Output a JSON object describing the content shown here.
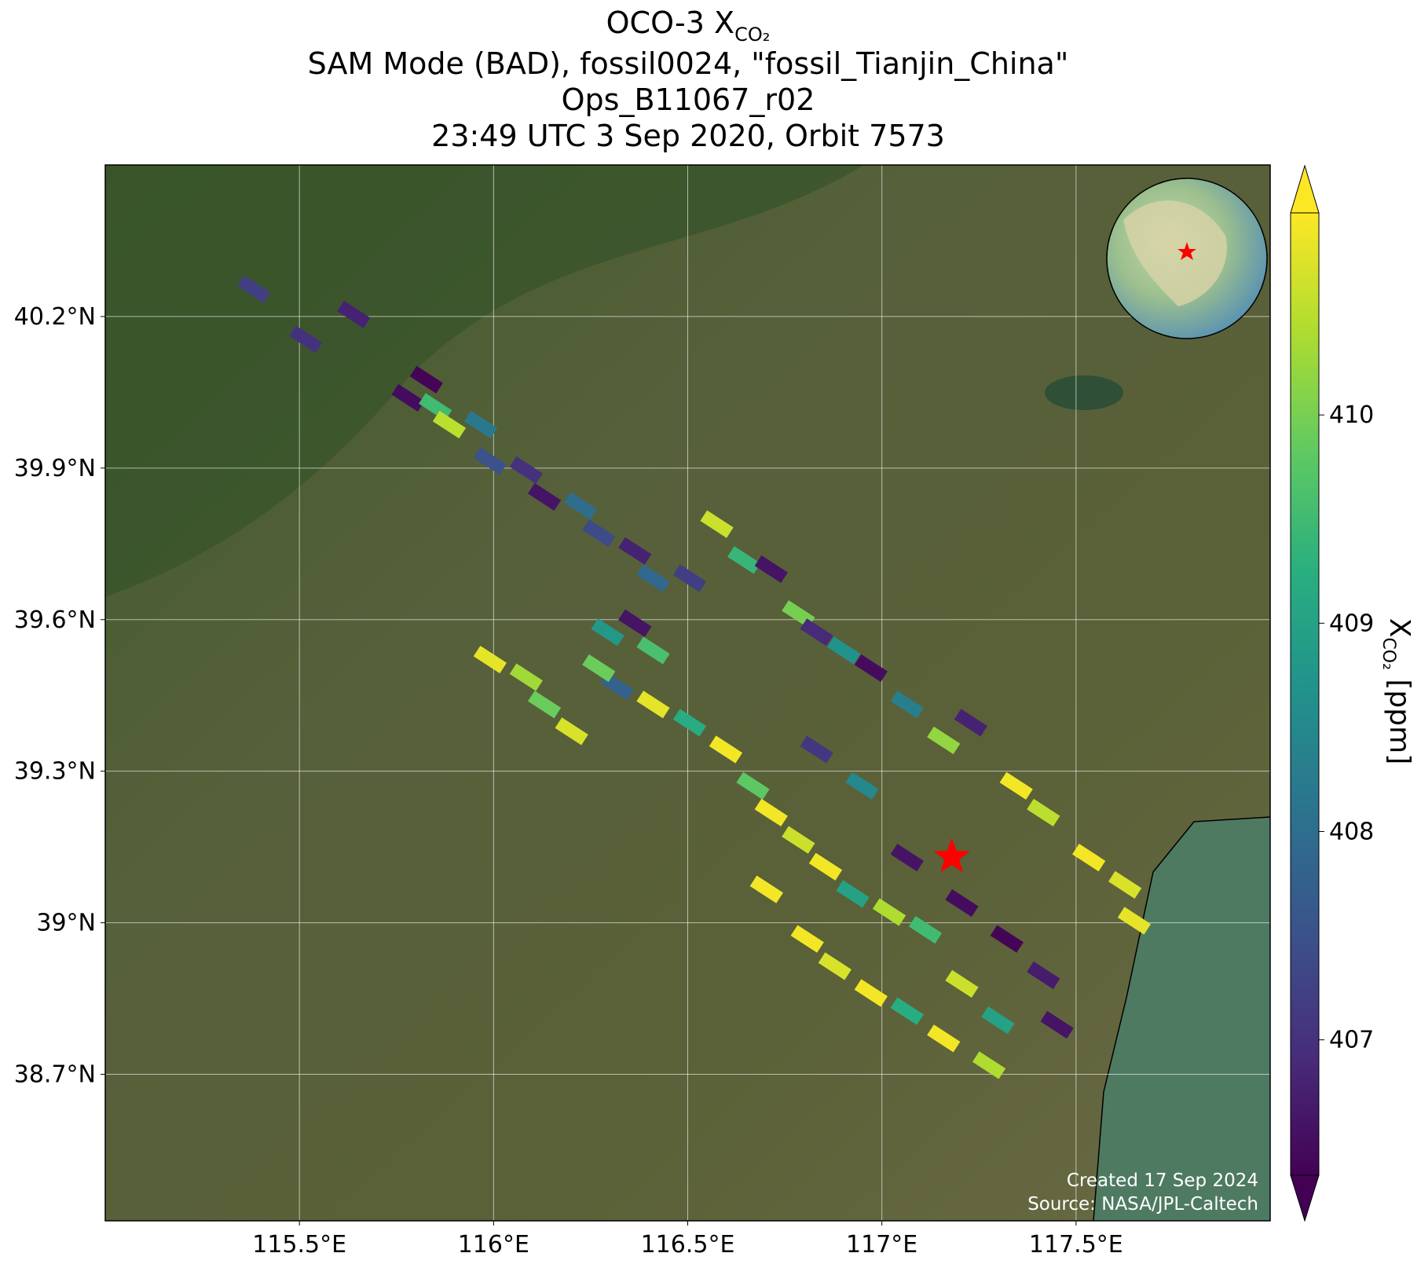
{
  "chart_data": {
    "type": "swath-map",
    "title": {
      "main": "OCO-3 X",
      "sub": "CO₂"
    },
    "subtitle_lines": [
      "SAM Mode (BAD), fossil0024, \"fossil_Tianjin_China\"",
      "Ops_B11067_r02",
      "23:49 UTC 3 Sep 2020, Orbit 7573"
    ],
    "xlim": [
      115.0,
      118.0
    ],
    "ylim": [
      38.41,
      40.5
    ],
    "xticks": [
      {
        "value": 115.5,
        "label": "115.5°E"
      },
      {
        "value": 116,
        "label": "116°E"
      },
      {
        "value": 116.5,
        "label": "116.5°E"
      },
      {
        "value": 117,
        "label": "117°E"
      },
      {
        "value": 117.5,
        "label": "117.5°E"
      }
    ],
    "yticks": [
      {
        "value": 38.7,
        "label": "38.7°N"
      },
      {
        "value": 39,
        "label": "39°N"
      },
      {
        "value": 39.3,
        "label": "39.3°N"
      },
      {
        "value": 39.6,
        "label": "39.6°N"
      },
      {
        "value": 39.9,
        "label": "39.9°N"
      },
      {
        "value": 40.2,
        "label": "40.2°N"
      }
    ],
    "grid": true,
    "colormap": "viridis",
    "clim": [
      406.35,
      410.97
    ],
    "cticks": [
      407,
      408,
      409,
      410
    ],
    "colorbar_label": {
      "main": "X",
      "sub": "CO₂",
      "suffix": " [ppm]"
    },
    "target": {
      "lon": 117.18,
      "lat": 39.13,
      "color": "#ff0000"
    },
    "soundings": {
      "lon": [
        115.383,
        115.64,
        115.516,
        115.78,
        115.85,
        115.827,
        115.886,
        115.967,
        115.991,
        116.084,
        116.131,
        116.224,
        116.271,
        116.364,
        116.411,
        116.505,
        116.575,
        116.645,
        116.715,
        116.785,
        116.832,
        116.902,
        116.972,
        117.065,
        117.159,
        117.229,
        117.346,
        117.416,
        117.533,
        117.626,
        117.65,
        116.294,
        116.364,
        116.411,
        116.318,
        116.271,
        116.411,
        116.505,
        116.598,
        116.668,
        116.715,
        116.785,
        116.855,
        116.925,
        117.019,
        117.112,
        117.065,
        117.206,
        117.322,
        117.416,
        116.949,
        116.832,
        115.991,
        116.084,
        116.131,
        116.201,
        116.879,
        116.972,
        117.065,
        117.206,
        117.159,
        117.276,
        117.299,
        116.808,
        116.703,
        117.451
      ],
      "lat": [
        40.254,
        40.204,
        40.155,
        40.039,
        40.021,
        40.075,
        39.986,
        39.986,
        39.914,
        39.896,
        39.843,
        39.825,
        39.771,
        39.736,
        39.682,
        39.682,
        39.789,
        39.718,
        39.7,
        39.611,
        39.575,
        39.539,
        39.504,
        39.432,
        39.361,
        39.396,
        39.271,
        39.218,
        39.129,
        39.075,
        39.004,
        39.575,
        39.593,
        39.539,
        39.468,
        39.504,
        39.432,
        39.396,
        39.343,
        39.271,
        39.218,
        39.164,
        39.111,
        39.057,
        39.021,
        38.986,
        39.129,
        39.039,
        38.968,
        38.896,
        39.271,
        39.343,
        39.521,
        39.486,
        39.432,
        39.379,
        38.914,
        38.861,
        38.825,
        38.879,
        38.771,
        38.718,
        38.807,
        38.968,
        39.066,
        38.798
      ],
      "xco2": [
        407.2,
        406.8,
        407.0,
        406.5,
        409.5,
        406.4,
        410.5,
        408.2,
        407.5,
        407.0,
        406.6,
        408.0,
        407.4,
        406.8,
        407.9,
        407.2,
        410.6,
        409.4,
        406.6,
        410.0,
        406.9,
        408.7,
        406.5,
        408.3,
        410.2,
        406.8,
        410.9,
        410.5,
        410.9,
        410.7,
        410.8,
        408.8,
        406.6,
        409.6,
        407.8,
        409.9,
        410.8,
        409.2,
        410.9,
        409.8,
        410.9,
        410.6,
        410.9,
        409.0,
        410.4,
        409.5,
        406.6,
        406.5,
        406.4,
        406.7,
        408.5,
        407.1,
        410.8,
        410.3,
        409.9,
        410.7,
        410.7,
        410.9,
        409.2,
        410.6,
        410.9,
        410.4,
        409.0,
        410.9,
        410.9,
        406.6
      ]
    },
    "credits": [
      "Created 17 Sep 2024",
      "Source: NASA/JPL-Caltech"
    ]
  }
}
